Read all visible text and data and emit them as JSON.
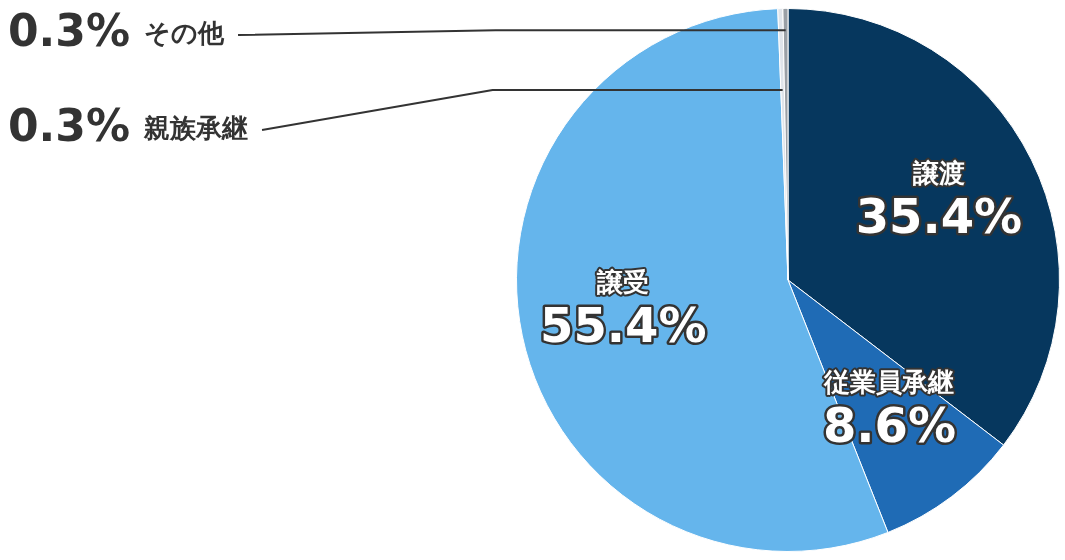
{
  "chart_data": {
    "type": "pie",
    "categories": [
      "譲渡",
      "従業員承継",
      "譲受",
      "親族承継",
      "その他"
    ],
    "values": [
      35.4,
      8.6,
      55.4,
      0.3,
      0.3
    ],
    "colors": [
      "#06375e",
      "#1f6bb5",
      "#65b5ec",
      "#dfe4ea",
      "#9aa0a6"
    ],
    "value_labels": [
      "35.4%",
      "8.6%",
      "55.4%",
      "0.3%",
      "0.3%"
    ],
    "legend": false
  }
}
